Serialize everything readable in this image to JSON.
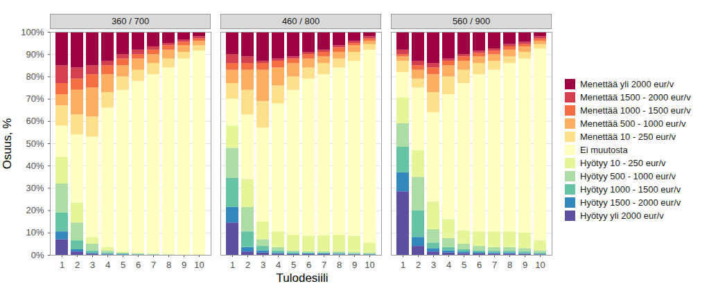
{
  "chart_data": {
    "type": "bar",
    "stacked": true,
    "grid": true,
    "legend": "right",
    "x_label": "Tulodesiili",
    "y_label": "Osuus, %",
    "categories": [
      1,
      2,
      3,
      4,
      5,
      6,
      7,
      8,
      9,
      10
    ],
    "ylim": [
      0,
      100
    ],
    "yticks": [
      {
        "value": 0,
        "label": "0%"
      },
      {
        "value": 10,
        "label": "10%"
      },
      {
        "value": 20,
        "label": "20%"
      },
      {
        "value": 30,
        "label": "30%"
      },
      {
        "value": 40,
        "label": "40%"
      },
      {
        "value": 50,
        "label": "50%"
      },
      {
        "value": 60,
        "label": "60%"
      },
      {
        "value": 70,
        "label": "70%"
      },
      {
        "value": 80,
        "label": "80%"
      },
      {
        "value": 90,
        "label": "90%"
      },
      {
        "value": 100,
        "label": "100%"
      }
    ],
    "panels": [
      {
        "title": "360 / 700"
      },
      {
        "title": "460 / 800",
        "tick_labels": "x"
      },
      {
        "title": "560 / 900",
        "tick_labels": "x"
      }
    ],
    "series": [
      {
        "name": "Hyötyy yli 2000 eur/v",
        "color": "#5e4fa2",
        "values": [
          [
            7,
            1.5,
            0.5,
            0.2,
            0.1,
            0.1,
            0,
            0,
            0,
            0
          ],
          [
            14.5,
            1.5,
            1,
            0.5,
            0.3,
            0.3,
            0.3,
            0.2,
            0.2,
            0.1
          ],
          [
            28.5,
            4,
            1.5,
            1,
            0.8,
            0.6,
            0.5,
            0.5,
            0.4,
            0.2
          ]
        ]
      },
      {
        "name": "Hyötyy 1500 - 2000 eur/v",
        "color": "#3288bd",
        "values": [
          [
            3.5,
            1,
            0.5,
            0.3,
            0.2,
            0.1,
            0.1,
            0,
            0,
            0
          ],
          [
            7,
            2,
            1,
            0.5,
            0.4,
            0.3,
            0.3,
            0.3,
            0.2,
            0.2
          ],
          [
            8.5,
            4,
            1.5,
            1,
            0.7,
            0.6,
            0.5,
            0.5,
            0.4,
            0.3
          ]
        ]
      },
      {
        "name": "Hyötyy 1000 - 1500 eur/v",
        "color": "#66c2a5",
        "values": [
          [
            8.5,
            4,
            1,
            0.5,
            0.3,
            0.2,
            0.1,
            0.1,
            0,
            0
          ],
          [
            13,
            7,
            2,
            1,
            0.5,
            0.4,
            0.4,
            0.4,
            0.3,
            0.2
          ],
          [
            11.5,
            12,
            2.5,
            1.5,
            1,
            0.8,
            0.8,
            0.8,
            0.7,
            0.5
          ]
        ]
      },
      {
        "name": "Hyötyy 500 - 1000 eur/v",
        "color": "#abdda4",
        "values": [
          [
            13,
            8,
            3,
            1,
            0.4,
            0.3,
            0.2,
            0.1,
            0.1,
            0.1
          ],
          [
            13.5,
            11,
            3,
            1.5,
            0.8,
            0.6,
            0.6,
            0.6,
            0.5,
            0.5
          ],
          [
            10.5,
            15,
            6,
            4,
            2.5,
            2,
            1.7,
            1.7,
            1.5,
            1
          ]
        ]
      },
      {
        "name": "Hyötyy 10 - 250 eur/v",
        "color": "#e6f598",
        "values": [
          [
            12,
            9,
            3,
            1.5,
            0.5,
            0.3,
            0.3,
            0.2,
            0.1,
            0.2
          ],
          [
            10,
            12.5,
            8,
            7,
            7,
            7,
            7.2,
            7.5,
            7.3,
            4.5
          ],
          [
            11.5,
            12,
            12.5,
            8.5,
            6,
            6.5,
            7,
            7,
            7,
            4.5
          ]
        ]
      },
      {
        "name": "Ei muutosta",
        "color": "#ffffbf",
        "values": [
          [
            14,
            30.5,
            45,
            62.5,
            72.5,
            77,
            80.3,
            83.6,
            87.8,
            91.2
          ],
          [
            12,
            29,
            42,
            57.5,
            65,
            70.4,
            72.2,
            75,
            78.5,
            86.5
          ],
          [
            11.5,
            28,
            40,
            56,
            66,
            70.5,
            72.5,
            75.5,
            78,
            86
          ]
        ]
      },
      {
        "name": "Menettää 10 - 250 eur/v",
        "color": "#fee08b",
        "values": [
          [
            9,
            9,
            9,
            7,
            6,
            5,
            5,
            4,
            3,
            2.5
          ],
          [
            7,
            11,
            12,
            8,
            6,
            5,
            5,
            4,
            4,
            2.5
          ],
          [
            5,
            4,
            9,
            8,
            6,
            5,
            4,
            3,
            3,
            2
          ]
        ]
      },
      {
        "name": "Menettää 500 - 1000 eur/v",
        "color": "#fdae61",
        "values": [
          [
            5,
            11,
            13,
            8,
            5,
            5,
            4,
            4,
            3,
            2
          ],
          [
            6,
            9,
            14,
            8,
            6,
            4,
            3,
            3,
            3,
            1.5
          ],
          [
            2,
            4,
            8,
            5,
            4,
            3,
            3,
            3,
            2.5,
            1.5
          ]
        ]
      },
      {
        "name": "Menettää 1000 - 1500 eur/v",
        "color": "#f46d43",
        "values": [
          [
            5,
            5,
            6,
            4,
            3,
            2,
            2,
            2,
            1.5,
            1
          ],
          [
            3,
            3,
            3,
            3,
            2,
            2,
            2,
            2,
            1,
            1
          ],
          [
            1,
            2,
            3,
            2,
            2,
            1.5,
            1.5,
            1.5,
            1,
            1
          ]
        ]
      },
      {
        "name": "Menettää 1500 - 2000 eur/v",
        "color": "#d53e4f",
        "values": [
          [
            8,
            5,
            4,
            2,
            2,
            2,
            1.5,
            1,
            1,
            1
          ],
          [
            4,
            3,
            1,
            1,
            1,
            1,
            1,
            1,
            1,
            1
          ],
          [
            2,
            2,
            2,
            1,
            1,
            1,
            1,
            1,
            1,
            1
          ]
        ]
      },
      {
        "name": "Menettää yli 2000 eur/v",
        "color": "#9e0142",
        "values": [
          [
            15,
            16,
            15,
            13,
            10,
            8,
            6.5,
            5,
            3.5,
            2
          ],
          [
            10,
            11,
            13,
            12,
            11,
            9,
            8,
            6,
            4,
            2
          ],
          [
            8,
            13,
            14,
            12,
            10,
            8.5,
            7.5,
            5.5,
            4.5,
            2
          ]
        ]
      }
    ]
  }
}
